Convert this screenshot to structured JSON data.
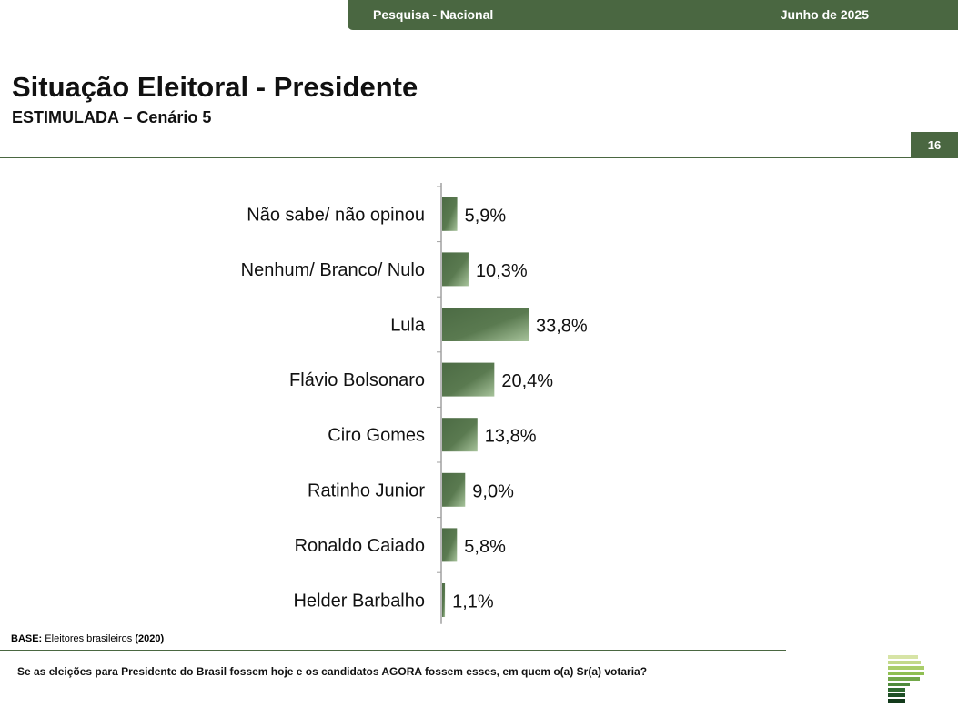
{
  "header": {
    "survey_label": "Pesquisa - Nacional",
    "date_label": "Junho de 2025"
  },
  "title": "Situação Eleitoral - Presidente",
  "subtitle": "ESTIMULADA – Cenário 5",
  "page_number": "16",
  "footer": {
    "base_label": "BASE:",
    "base_text": "Eleitores brasileiros",
    "base_count": "(2020)",
    "question": "Se as eleições para Presidente do Brasil fossem hoje e os candidatos AGORA fossem esses, em quem o(a) Sr(a) votaria?"
  },
  "colors": {
    "brand_green": "#4a6741",
    "bar_dark": "#4c6b44",
    "bar_light": "#a7c39b"
  },
  "chart_data": {
    "type": "bar",
    "orientation": "horizontal",
    "categories": [
      "Não sabe/ não opinou",
      "Nenhum/ Branco/ Nulo",
      "Lula",
      "Flávio Bolsonaro",
      "Ciro Gomes",
      "Ratinho Junior",
      "Ronaldo Caiado",
      "Helder Barbalho"
    ],
    "values": [
      5.9,
      10.3,
      33.8,
      20.4,
      13.8,
      9.0,
      5.8,
      1.1
    ],
    "value_labels": [
      "5,9%",
      "10,3%",
      "33,8%",
      "20,4%",
      "13,8%",
      "9,0%",
      "5,8%",
      "1,1%"
    ],
    "xlim": [
      0,
      100
    ],
    "grid": false,
    "legend": "none"
  }
}
